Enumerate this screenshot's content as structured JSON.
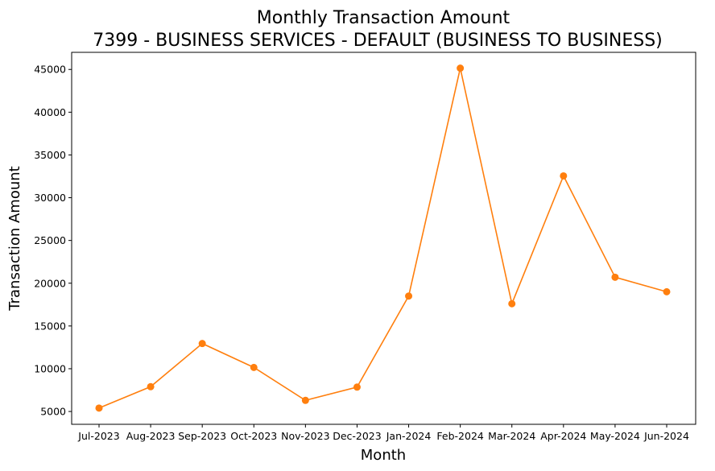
{
  "chart_data": {
    "type": "line",
    "title_lines": [
      "Monthly Transaction Amount",
      "7399 - BUSINESS SERVICES - DEFAULT (BUSINESS TO BUSINESS)"
    ],
    "xlabel": "Month",
    "ylabel": "Transaction Amount",
    "categories": [
      "Jul-2023",
      "Aug-2023",
      "Sep-2023",
      "Oct-2023",
      "Nov-2023",
      "Dec-2023",
      "Jan-2024",
      "Feb-2024",
      "Mar-2024",
      "Apr-2024",
      "May-2024",
      "Jun-2024"
    ],
    "series": [
      {
        "values": [
          5400,
          7900,
          12950,
          10150,
          6300,
          7850,
          18500,
          45150,
          17600,
          32550,
          20700,
          19000
        ],
        "color": "#ff7f0e",
        "marker": "circle"
      }
    ],
    "ylim": [
      3500,
      47000
    ],
    "yticks": [
      5000,
      10000,
      15000,
      20000,
      25000,
      30000,
      35000,
      40000,
      45000
    ],
    "grid": false,
    "legend": "none"
  }
}
